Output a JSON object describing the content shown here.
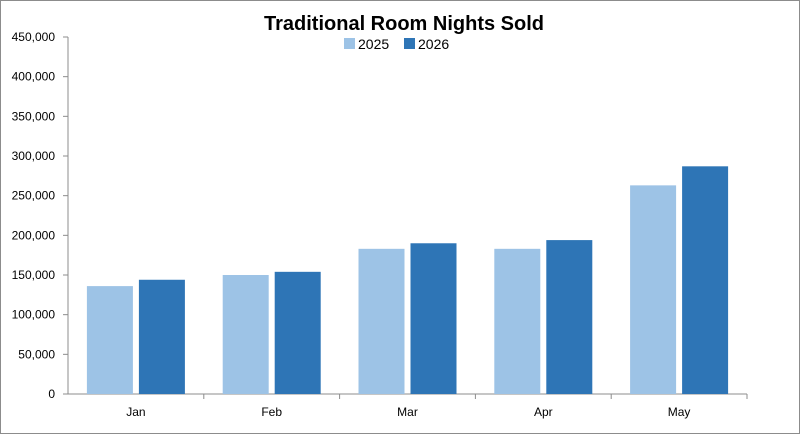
{
  "chart_data": {
    "type": "bar",
    "title": "Traditional Room Nights Sold",
    "categories": [
      "Jan",
      "Feb",
      "Mar",
      "Apr",
      "May"
    ],
    "series": [
      {
        "name": "2025",
        "color": "#9dc3e6",
        "values": [
          136000,
          150000,
          183000,
          183000,
          263000
        ]
      },
      {
        "name": "2026",
        "color": "#2e75b6",
        "values": [
          144000,
          154000,
          190000,
          194000,
          287000
        ]
      }
    ],
    "ylim": [
      0,
      450000
    ],
    "yticks": [
      0,
      50000,
      100000,
      150000,
      200000,
      250000,
      300000,
      350000,
      400000,
      450000
    ],
    "ytick_labels": [
      "0",
      "50,000",
      "100,000",
      "150,000",
      "200,000",
      "250,000",
      "300,000",
      "350,000",
      "400,000",
      "450,000"
    ],
    "grid": false,
    "legend_position": "top-center"
  }
}
